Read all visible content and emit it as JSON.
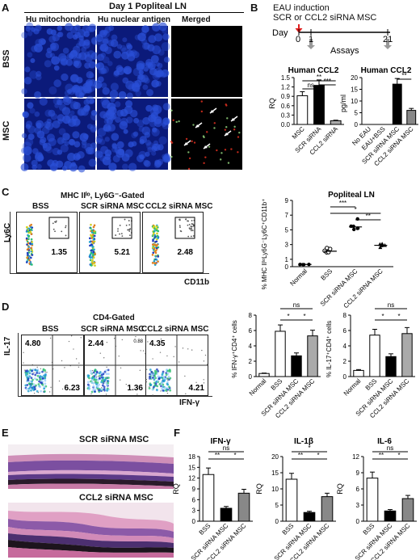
{
  "panelA": {
    "label": "A",
    "title": "Day 1 Popliteal LN",
    "cols": [
      "Hu mitochondria",
      "Hu nuclear antigen",
      "Merged"
    ],
    "rows": [
      "BSS",
      "MSC"
    ]
  },
  "panelB": {
    "label": "B",
    "header_line1": "EAU induction",
    "header_line2": "SCR or CCL2 siRNA MSC",
    "timeline": {
      "day_label": "Day",
      "ticks": [
        "0",
        "1",
        "21"
      ],
      "assays_label": "Assays"
    },
    "chart1": {
      "title": "Human CCL2",
      "ylabel": "RQ",
      "ticks": [
        "0.0",
        "0.3",
        "0.6",
        "0.9",
        "1.2",
        "1.5"
      ],
      "sig": [
        "ns",
        "**",
        "***"
      ]
    },
    "chart2": {
      "title": "Human CCL2",
      "ylabel": "pg/ml",
      "ticks": [
        "0",
        "5",
        "10",
        "15",
        "20"
      ],
      "sig": [
        "**"
      ]
    }
  },
  "panelC": {
    "label": "C",
    "gate_title": "MHC IIˡᵒ, Ly6G⁻-Gated",
    "groups": [
      "BSS",
      "SCR siRNA MSC",
      "CCL2 siRNA MSC"
    ],
    "percents": [
      "1.35",
      "5.21",
      "2.48"
    ],
    "y_axis": "Ly6C",
    "x_axis": "CD11b",
    "scatter_title": "Popliteal LN",
    "scatter_ylabel": "% MHC IIˡᵒLy6G⁻Ly6C⁺CD11b⁺",
    "scatter_ticks": [
      "0",
      "1",
      "3",
      "5",
      "7",
      "9"
    ],
    "sig": [
      "***",
      "*",
      "**"
    ]
  },
  "panelD": {
    "label": "D",
    "gate_title": "CD4-Gated",
    "groups": [
      "BSS",
      "SCR siRNA MSC",
      "CCL2 siRNA MSC"
    ],
    "quad_ul": [
      "4.80",
      "2.44",
      "4.35"
    ],
    "quad_ur": [
      "",
      "0.88",
      ""
    ],
    "quad_lr": [
      "6.23",
      "1.36",
      "4.21"
    ],
    "y_axis": "IL-17",
    "x_axis": "IFN-γ",
    "chart1_ylabel": "% IFN-γ⁺CD4⁺ cells",
    "chart2_ylabel": "% IL-17⁺CD4⁺ cells",
    "ticks": [
      "0",
      "2",
      "4",
      "6",
      "8"
    ],
    "sig": [
      "ns",
      "*",
      "*"
    ]
  },
  "panelE": {
    "label": "E",
    "images": [
      "SCR siRNA MSC",
      "CCL2 siRNA MSC"
    ]
  },
  "panelF": {
    "label": "F",
    "ylabel": "RQ",
    "sig_a": [
      "ns",
      "**",
      "*"
    ],
    "sig_b": [
      "*",
      "**",
      "*"
    ],
    "sig_c": [
      "ns",
      "**",
      "*"
    ]
  },
  "common_categories": [
    "Normal",
    "BSS",
    "SCR siRNA MSC",
    "CCL2 siRNA MSC"
  ],
  "chart_data": [
    {
      "type": "bar",
      "title": "Human CCL2",
      "ylabel": "RQ",
      "ylim": [
        0,
        1.5
      ],
      "categories": [
        "MSC",
        "SCR siRNA",
        "CCL2 siRNA"
      ],
      "values": [
        0.92,
        1.25,
        0.12
      ]
    },
    {
      "type": "bar",
      "title": "Human CCL2",
      "ylabel": "pg/ml",
      "ylim": [
        0,
        20
      ],
      "categories": [
        "No EAU",
        "EAU+BSS",
        "SCR siRNA MSC",
        "CCL2 siRNA MSC"
      ],
      "values": [
        0,
        0,
        17.2,
        6.0
      ]
    },
    {
      "type": "scatter",
      "title": "Popliteal LN",
      "ylim": [
        0,
        9
      ],
      "categories": [
        "Normal",
        "BSS",
        "SCR siRNA MSC",
        "CCL2 siRNA MSC"
      ],
      "values": [
        0.3,
        2.1,
        5.4,
        2.9
      ]
    },
    {
      "type": "bar",
      "ylabel": "% IFN-γ⁺CD4⁺ cells",
      "ylim": [
        0,
        8
      ],
      "categories": [
        "Normal",
        "BSS",
        "SCR siRNA MSC",
        "CCL2 siRNA MSC"
      ],
      "values": [
        0.4,
        5.9,
        2.7,
        5.3
      ]
    },
    {
      "type": "bar",
      "ylabel": "% IL-17⁺CD4⁺ cells",
      "ylim": [
        0,
        8
      ],
      "categories": [
        "Normal",
        "BSS",
        "SCR siRNA MSC",
        "CCL2 siRNA MSC"
      ],
      "values": [
        0.8,
        5.4,
        2.6,
        5.6
      ]
    },
    {
      "type": "bar",
      "title": "IFN-γ",
      "ylabel": "RQ",
      "ylim": [
        0,
        18
      ],
      "categories": [
        "BSS",
        "SCR siRNA MSC",
        "CCL2 siRNA MSC"
      ],
      "values": [
        13.0,
        3.6,
        7.8
      ]
    },
    {
      "type": "bar",
      "title": "IL-1β",
      "ylabel": "RQ",
      "ylim": [
        0,
        20
      ],
      "categories": [
        "BSS",
        "SCR siRNA MSC",
        "CCL2 siRNA MSC"
      ],
      "values": [
        13.0,
        2.7,
        7.6
      ]
    },
    {
      "type": "bar",
      "title": "IL-6",
      "ylabel": "RQ",
      "ylim": [
        0,
        12
      ],
      "categories": [
        "BSS",
        "SCR siRNA MSC",
        "CCL2 siRNA MSC"
      ],
      "values": [
        8.0,
        1.9,
        4.2
      ]
    }
  ],
  "tick_sets": {
    "d": [
      "0",
      "2",
      "4",
      "6",
      "8"
    ],
    "f1": [
      "0",
      "3",
      "6",
      "9",
      "12",
      "15",
      "18"
    ],
    "f2": [
      "0",
      "5",
      "10",
      "15",
      "20"
    ],
    "f3": [
      "0",
      "3",
      "6",
      "9",
      "12"
    ]
  },
  "fluor_colors": {
    "blue": "#2a4fd6",
    "red": "#e03020",
    "green": "#8fd07a"
  }
}
